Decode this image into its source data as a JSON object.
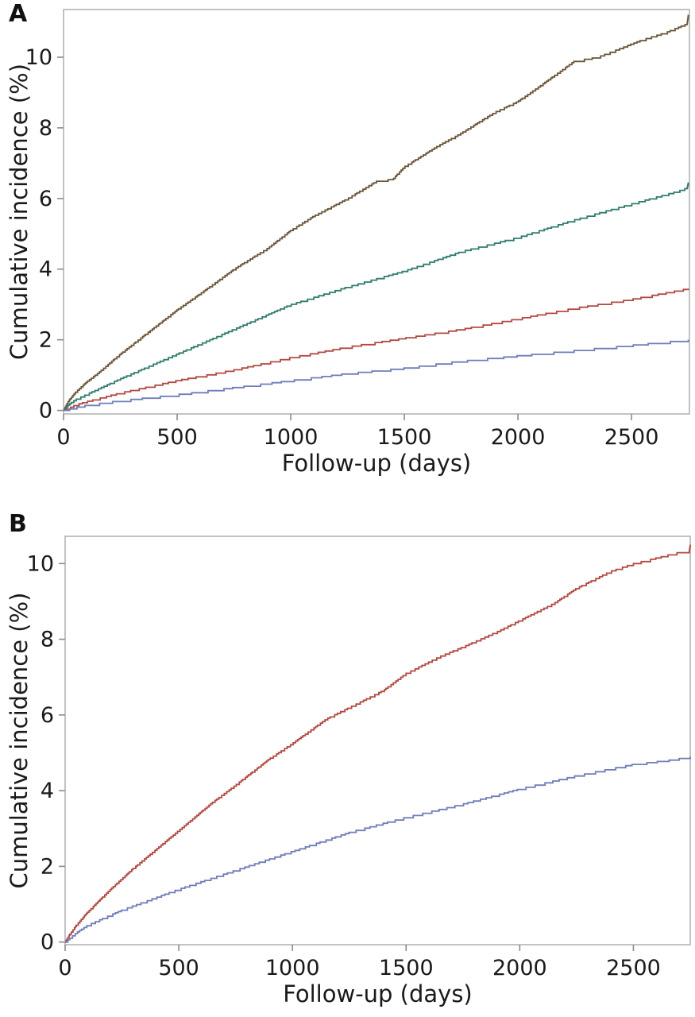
{
  "figure": {
    "background": "#ffffff",
    "frame_color": "#b4b4b4",
    "tick_color": "#8c8c8c",
    "text_color": "#1a1a1a",
    "panels": [
      {
        "label": "A"
      },
      {
        "label": "B"
      }
    ]
  },
  "chart_data": [
    {
      "type": "line",
      "subtype": "cumulative-incidence-step-curves",
      "panel_label": "A",
      "title": "",
      "xlabel": "Follow-up (days)",
      "ylabel": "Cumulative incidence (%)",
      "xlim": [
        0,
        2750
      ],
      "ylim": [
        0,
        11.3
      ],
      "xticks": [
        0,
        500,
        1000,
        1500,
        2000,
        2500
      ],
      "yticks": [
        0,
        2,
        4,
        6,
        8,
        10
      ],
      "grid": false,
      "legend": null,
      "series": [
        {
          "name": "curve-1-highest-brown",
          "color": "#6a5639",
          "x": [
            0,
            20,
            50,
            100,
            150,
            250,
            400,
            500,
            600,
            750,
            900,
            1000,
            1100,
            1250,
            1380,
            1450,
            1500,
            1650,
            1750,
            1900,
            2000,
            2100,
            2250,
            2350,
            2450,
            2550,
            2650,
            2745,
            2750
          ],
          "y": [
            0,
            0.25,
            0.5,
            0.8,
            1.05,
            1.6,
            2.35,
            2.85,
            3.3,
            4.0,
            4.6,
            5.1,
            5.5,
            6.0,
            6.5,
            6.55,
            6.9,
            7.5,
            7.85,
            8.45,
            8.75,
            9.2,
            9.9,
            10.0,
            10.25,
            10.5,
            10.7,
            10.95,
            11.2
          ]
        },
        {
          "name": "curve-2-teal",
          "color": "#2f7d6d",
          "x": [
            0,
            20,
            50,
            100,
            250,
            500,
            750,
            1000,
            1250,
            1500,
            1750,
            2000,
            2250,
            2500,
            2700,
            2745,
            2750
          ],
          "y": [
            0,
            0.15,
            0.3,
            0.45,
            0.9,
            1.6,
            2.3,
            3.0,
            3.5,
            3.95,
            4.5,
            4.9,
            5.4,
            5.85,
            6.2,
            6.3,
            6.45
          ]
        },
        {
          "name": "curve-3-red",
          "color": "#b04a42",
          "x": [
            0,
            50,
            100,
            250,
            500,
            750,
            1000,
            1250,
            1500,
            1750,
            2000,
            2250,
            2500,
            2750
          ],
          "y": [
            0,
            0.15,
            0.25,
            0.5,
            0.85,
            1.15,
            1.5,
            1.8,
            2.05,
            2.3,
            2.6,
            2.9,
            3.15,
            3.45
          ]
        },
        {
          "name": "curve-4-lowest-blue",
          "color": "#6e7eb8",
          "x": [
            0,
            50,
            100,
            250,
            500,
            750,
            1000,
            1250,
            1500,
            1750,
            2000,
            2250,
            2500,
            2750
          ],
          "y": [
            0,
            0.08,
            0.15,
            0.28,
            0.45,
            0.65,
            0.85,
            1.05,
            1.2,
            1.4,
            1.55,
            1.7,
            1.85,
            2.0
          ]
        }
      ]
    },
    {
      "type": "line",
      "subtype": "cumulative-incidence-step-curves",
      "panel_label": "B",
      "title": "",
      "xlabel": "Follow-up (days)",
      "ylabel": "Cumulative incidence (%)",
      "xlim": [
        0,
        2750
      ],
      "ylim": [
        0,
        10.7
      ],
      "xticks": [
        0,
        500,
        1000,
        1500,
        2000,
        2500
      ],
      "yticks": [
        0,
        2,
        4,
        6,
        8,
        10
      ],
      "grid": false,
      "legend": null,
      "series": [
        {
          "name": "curve-1-red",
          "color": "#b04a42",
          "x": [
            0,
            20,
            50,
            100,
            200,
            300,
            400,
            500,
            650,
            750,
            900,
            1000,
            1150,
            1250,
            1400,
            1500,
            1650,
            1750,
            1900,
            2000,
            2150,
            2250,
            2400,
            2500,
            2600,
            2700,
            2745,
            2750
          ],
          "y": [
            0,
            0.2,
            0.45,
            0.8,
            1.4,
            1.95,
            2.45,
            2.95,
            3.7,
            4.15,
            4.85,
            5.25,
            5.9,
            6.2,
            6.65,
            7.1,
            7.55,
            7.8,
            8.2,
            8.5,
            8.95,
            9.35,
            9.8,
            10.0,
            10.15,
            10.3,
            10.3,
            10.5
          ]
        },
        {
          "name": "curve-2-blue",
          "color": "#6e7eb8",
          "x": [
            0,
            50,
            100,
            250,
            500,
            750,
            1000,
            1250,
            1500,
            1750,
            2000,
            2250,
            2500,
            2650,
            2750
          ],
          "y": [
            0,
            0.25,
            0.45,
            0.85,
            1.4,
            1.9,
            2.4,
            2.9,
            3.3,
            3.65,
            4.05,
            4.4,
            4.7,
            4.8,
            4.9
          ]
        }
      ]
    }
  ]
}
